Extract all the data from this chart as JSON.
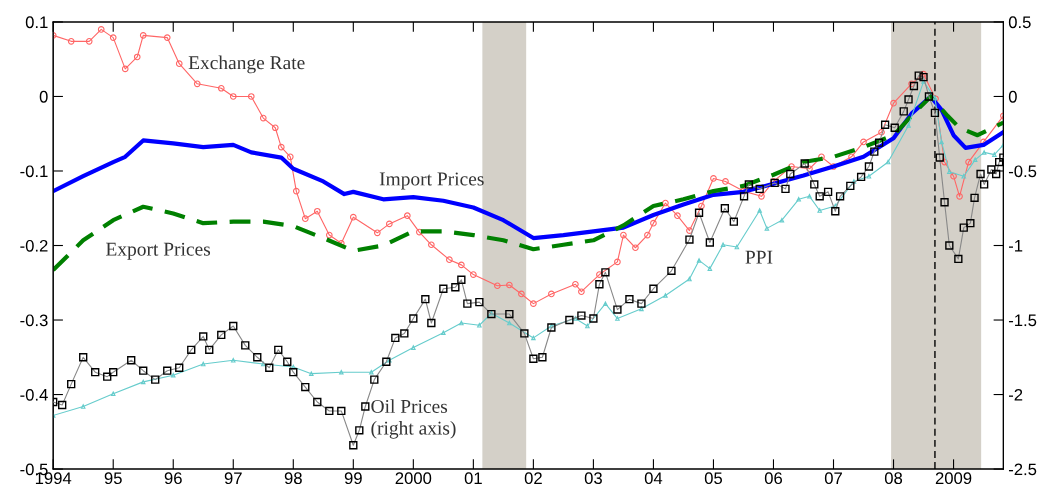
{
  "chart_data": {
    "type": "line",
    "xlim": [
      1994,
      2009.83
    ],
    "xticks": [
      {
        "value": 1994,
        "label": "1994"
      },
      {
        "value": 1995,
        "label": "95"
      },
      {
        "value": 1996,
        "label": "96"
      },
      {
        "value": 1997,
        "label": "97"
      },
      {
        "value": 1998,
        "label": "98"
      },
      {
        "value": 1999,
        "label": "99"
      },
      {
        "value": 2000,
        "label": "2000"
      },
      {
        "value": 2001,
        "label": "01"
      },
      {
        "value": 2002,
        "label": "02"
      },
      {
        "value": 2003,
        "label": "03"
      },
      {
        "value": 2004,
        "label": "04"
      },
      {
        "value": 2005,
        "label": "05"
      },
      {
        "value": 2006,
        "label": "06"
      },
      {
        "value": 2007,
        "label": "07"
      },
      {
        "value": 2008,
        "label": "08"
      },
      {
        "value": 2009,
        "label": "2009"
      }
    ],
    "ylim": [
      -0.5,
      0.1
    ],
    "yticks": [
      0.1,
      0,
      -0.1,
      -0.2,
      -0.3,
      -0.4,
      -0.5
    ],
    "y2lim": [
      -2.5,
      0.5
    ],
    "y2ticks": [
      0.5,
      0,
      -0.5,
      -1,
      -1.5,
      -2,
      -2.5
    ],
    "grid": false,
    "legend": false,
    "series": [
      {
        "name": "Exchange Rate",
        "color": "#ff6666",
        "marker": "circle",
        "line_style": "solid",
        "x": [
          1994.0,
          1994.3,
          1994.6,
          1994.8,
          1995.0,
          1995.2,
          1995.4,
          1995.5,
          1995.9,
          1996.1,
          1996.4,
          1996.8,
          1997.0,
          1997.3,
          1997.5,
          1997.7,
          1997.8,
          1997.95,
          1998.05,
          1998.2,
          1998.4,
          1998.6,
          1998.8,
          1999.0,
          1999.4,
          1999.6,
          1999.9,
          2000.1,
          2000.3,
          2000.6,
          2000.8,
          2001.0,
          2001.4,
          2001.6,
          2001.8,
          2002.0,
          2002.3,
          2002.7,
          2002.8,
          2003.1,
          2003.4,
          2003.5,
          2003.7,
          2003.9,
          2004.0,
          2004.2,
          2004.4,
          2004.6,
          2004.8,
          2005.0,
          2005.2,
          2005.5,
          2005.8,
          2006.0,
          2006.3,
          2006.6,
          2006.8,
          2007.0,
          2007.3,
          2007.5,
          2007.8,
          2008.0,
          2008.3,
          2008.5,
          2008.7,
          2008.85,
          2009.0,
          2009.1,
          2009.25,
          2009.5,
          2009.83
        ],
        "values": [
          0.082,
          0.074,
          0.074,
          0.09,
          0.079,
          0.037,
          0.053,
          0.082,
          0.079,
          0.044,
          0.017,
          0.011,
          0.0,
          0.0,
          -0.029,
          -0.042,
          -0.068,
          -0.081,
          -0.127,
          -0.164,
          -0.154,
          -0.186,
          -0.197,
          -0.162,
          -0.183,
          -0.171,
          -0.16,
          -0.182,
          -0.199,
          -0.219,
          -0.226,
          -0.239,
          -0.254,
          -0.253,
          -0.265,
          -0.278,
          -0.265,
          -0.252,
          -0.262,
          -0.239,
          -0.222,
          -0.186,
          -0.203,
          -0.186,
          -0.17,
          -0.143,
          -0.16,
          -0.18,
          -0.147,
          -0.11,
          -0.114,
          -0.127,
          -0.134,
          -0.114,
          -0.094,
          -0.097,
          -0.081,
          -0.094,
          -0.081,
          -0.061,
          -0.048,
          -0.009,
          0.017,
          0.03,
          -0.003,
          -0.088,
          -0.107,
          -0.134,
          -0.088,
          -0.061,
          -0.026
        ]
      },
      {
        "name": "Import Prices",
        "color": "#0000ff",
        "marker": "none",
        "line_style": "solid",
        "x": [
          1994.0,
          1994.5,
          1995.0,
          1995.2,
          1995.5,
          1996.0,
          1996.5,
          1997.0,
          1997.3,
          1997.8,
          1998.0,
          1998.5,
          1998.85,
          1999.0,
          1999.5,
          2000.0,
          2000.5,
          2001.0,
          2001.5,
          2002.0,
          2002.5,
          2003.0,
          2003.5,
          2004.0,
          2004.5,
          2005.0,
          2005.5,
          2006.0,
          2006.5,
          2007.0,
          2007.5,
          2008.0,
          2008.3,
          2008.62,
          2008.8,
          2009.0,
          2009.2,
          2009.5,
          2009.83
        ],
        "values": [
          -0.127,
          -0.107,
          -0.088,
          -0.081,
          -0.059,
          -0.063,
          -0.068,
          -0.065,
          -0.075,
          -0.082,
          -0.097,
          -0.114,
          -0.131,
          -0.128,
          -0.138,
          -0.135,
          -0.14,
          -0.149,
          -0.166,
          -0.19,
          -0.186,
          -0.181,
          -0.176,
          -0.159,
          -0.145,
          -0.132,
          -0.128,
          -0.117,
          -0.106,
          -0.094,
          -0.081,
          -0.056,
          -0.023,
          0.0,
          -0.018,
          -0.052,
          -0.069,
          -0.065,
          -0.048
        ]
      },
      {
        "name": "Export Prices",
        "color": "#008000",
        "marker": "none",
        "line_style": "dashed",
        "x": [
          1994.0,
          1994.5,
          1995.0,
          1995.5,
          1996.0,
          1996.5,
          1997.0,
          1997.5,
          1998.0,
          1998.5,
          1999.0,
          1999.5,
          2000.0,
          2000.5,
          2001.0,
          2001.5,
          2002.0,
          2002.5,
          2003.0,
          2003.5,
          2004.0,
          2004.5,
          2005.0,
          2005.5,
          2006.0,
          2006.5,
          2007.0,
          2007.5,
          2008.0,
          2008.3,
          2008.62,
          2008.9,
          2009.1,
          2009.4,
          2009.83
        ],
        "values": [
          -0.233,
          -0.193,
          -0.166,
          -0.148,
          -0.157,
          -0.17,
          -0.168,
          -0.168,
          -0.174,
          -0.19,
          -0.207,
          -0.2,
          -0.181,
          -0.181,
          -0.186,
          -0.193,
          -0.205,
          -0.199,
          -0.193,
          -0.173,
          -0.147,
          -0.138,
          -0.127,
          -0.12,
          -0.105,
          -0.088,
          -0.081,
          -0.068,
          -0.052,
          -0.026,
          0.0,
          -0.026,
          -0.042,
          -0.052,
          -0.035
        ]
      },
      {
        "name": "PPI",
        "color": "#66cccc",
        "marker": "triangle",
        "line_style": "solid",
        "x": [
          1994.0,
          1994.5,
          1995.0,
          1995.5,
          1996.0,
          1996.5,
          1997.0,
          1997.5,
          1998.0,
          1998.3,
          1998.8,
          1999.3,
          1999.6,
          2000.0,
          2000.5,
          2000.8,
          2001.1,
          2001.3,
          2001.6,
          2002.0,
          2002.3,
          2002.7,
          2002.9,
          2003.2,
          2003.4,
          2003.8,
          2004.2,
          2004.6,
          2004.76,
          2004.94,
          2005.16,
          2005.39,
          2005.77,
          2005.89,
          2006.14,
          2006.42,
          2006.6,
          2006.77,
          2007.03,
          2007.34,
          2007.59,
          2007.91,
          2008.25,
          2008.5,
          2008.69,
          2008.8,
          2008.93,
          2009.17,
          2009.36,
          2009.51,
          2009.68,
          2009.83
        ],
        "values": [
          -0.428,
          -0.416,
          -0.399,
          -0.383,
          -0.374,
          -0.359,
          -0.354,
          -0.359,
          -0.363,
          -0.372,
          -0.37,
          -0.37,
          -0.354,
          -0.337,
          -0.317,
          -0.304,
          -0.307,
          -0.291,
          -0.304,
          -0.324,
          -0.308,
          -0.298,
          -0.308,
          -0.278,
          -0.298,
          -0.285,
          -0.267,
          -0.245,
          -0.22,
          -0.231,
          -0.199,
          -0.202,
          -0.153,
          -0.177,
          -0.166,
          -0.138,
          -0.134,
          -0.153,
          -0.147,
          -0.114,
          -0.107,
          -0.088,
          -0.039,
          0.02,
          -0.002,
          -0.061,
          -0.101,
          -0.107,
          -0.085,
          -0.075,
          -0.078,
          -0.065
        ]
      },
      {
        "name": "Oil Prices\n(right axis)",
        "color": "#000000",
        "marker": "square",
        "line_style": "solid",
        "axis": "y2",
        "x": [
          1994.0,
          1994.15,
          1994.3,
          1994.5,
          1994.7,
          1994.9,
          1995.0,
          1995.3,
          1995.5,
          1995.7,
          1995.9,
          1996.1,
          1996.3,
          1996.5,
          1996.6,
          1996.8,
          1997.0,
          1997.2,
          1997.4,
          1997.6,
          1997.75,
          1997.9,
          1998.0,
          1998.2,
          1998.4,
          1998.6,
          1998.8,
          1999.0,
          1999.1,
          1999.2,
          1999.35,
          1999.55,
          1999.7,
          1999.85,
          2000.0,
          2000.2,
          2000.3,
          2000.5,
          2000.7,
          2000.8,
          2000.9,
          2001.1,
          2001.3,
          2001.6,
          2001.85,
          2002.0,
          2002.15,
          2002.3,
          2002.6,
          2002.8,
          2003.0,
          2003.1,
          2003.2,
          2003.4,
          2003.6,
          2003.8,
          2004.0,
          2004.3,
          2004.6,
          2004.76,
          2004.94,
          2005.19,
          2005.34,
          2005.51,
          2005.59,
          2005.77,
          2006.02,
          2006.2,
          2006.28,
          2006.52,
          2006.68,
          2006.77,
          2006.91,
          2007.03,
          2007.11,
          2007.28,
          2007.46,
          2007.59,
          2007.68,
          2007.76,
          2007.86,
          2008.02,
          2008.17,
          2008.25,
          2008.34,
          2008.42,
          2008.5,
          2008.59,
          2008.69,
          2008.77,
          2008.85,
          2008.93,
          2009.08,
          2009.17,
          2009.28,
          2009.35,
          2009.45,
          2009.51,
          2009.63,
          2009.71,
          2009.76,
          2009.83
        ],
        "values": [
          -2.05,
          -2.07,
          -1.93,
          -1.75,
          -1.85,
          -1.88,
          -1.85,
          -1.77,
          -1.84,
          -1.9,
          -1.84,
          -1.82,
          -1.7,
          -1.61,
          -1.7,
          -1.6,
          -1.54,
          -1.67,
          -1.75,
          -1.82,
          -1.7,
          -1.78,
          -1.85,
          -1.95,
          -2.05,
          -2.11,
          -2.11,
          -2.34,
          -2.24,
          -2.08,
          -1.9,
          -1.78,
          -1.62,
          -1.59,
          -1.49,
          -1.36,
          -1.52,
          -1.29,
          -1.28,
          -1.23,
          -1.39,
          -1.38,
          -1.46,
          -1.46,
          -1.59,
          -1.76,
          -1.75,
          -1.55,
          -1.5,
          -1.47,
          -1.49,
          -1.26,
          -1.18,
          -1.43,
          -1.36,
          -1.39,
          -1.29,
          -1.17,
          -0.96,
          -0.78,
          -0.98,
          -0.75,
          -0.84,
          -0.67,
          -0.59,
          -0.62,
          -0.58,
          -0.62,
          -0.52,
          -0.45,
          -0.59,
          -0.67,
          -0.64,
          -0.77,
          -0.67,
          -0.6,
          -0.54,
          -0.47,
          -0.37,
          -0.31,
          -0.19,
          -0.21,
          -0.1,
          -0.02,
          0.07,
          0.14,
          0.13,
          0.0,
          -0.11,
          -0.41,
          -0.71,
          -1.0,
          -1.09,
          -0.88,
          -0.85,
          -0.68,
          -0.52,
          -0.59,
          -0.49,
          -0.52,
          -0.44,
          -0.41
        ]
      }
    ],
    "bands": [
      {
        "axis": "x",
        "from": 2001.15,
        "to": 2001.88,
        "color": "#d4d0c8"
      },
      {
        "axis": "x",
        "from": 2007.96,
        "to": 2009.46,
        "color": "#d4d0c8"
      }
    ],
    "ref_lines": [
      {
        "axis": "x",
        "value": 2008.69,
        "color": "#000000",
        "line_style": "dashed"
      }
    ]
  }
}
